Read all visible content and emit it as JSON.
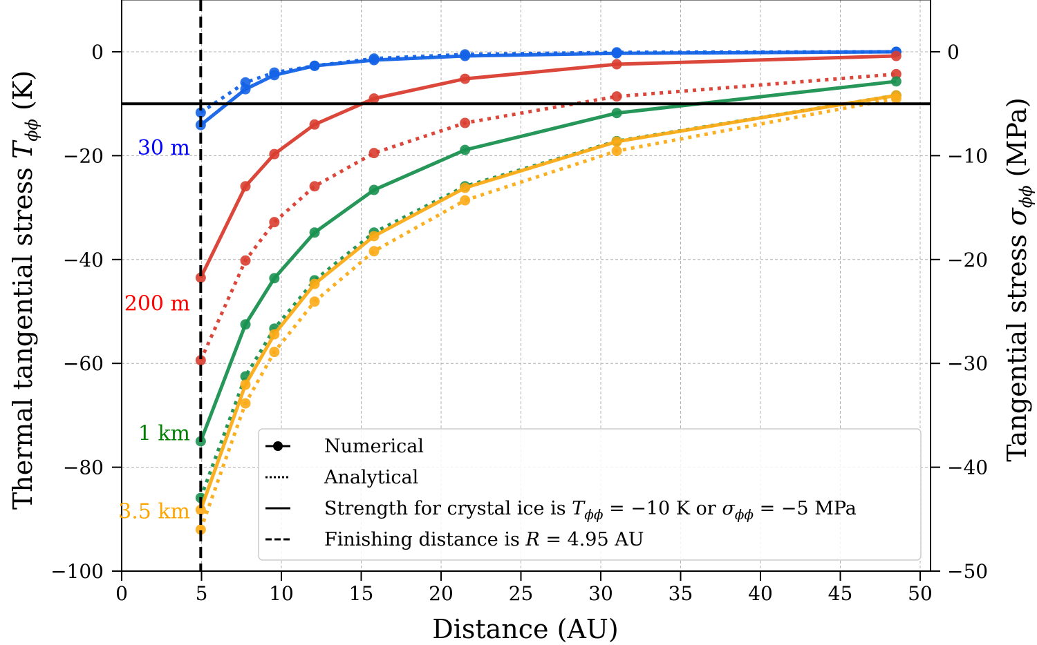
{
  "chart_data": {
    "type": "line",
    "xlabel": "Distance (AU)",
    "ylabel_left": "Thermal tangential stress T_φφ (K)",
    "ylabel_left_plain": "Thermal tangential stress ",
    "ylabel_left_sym": "T",
    "ylabel_left_sub": "ϕϕ",
    "ylabel_left_unit": " (K)",
    "ylabel_right": "Tangential stress σ_φφ (MPa)",
    "ylabel_right_plain": "Tangential stress ",
    "ylabel_right_sym": "σ",
    "ylabel_right_sub": "ϕϕ",
    "ylabel_right_unit": " (MPa)",
    "xlim": [
      0,
      50
    ],
    "ylim_left": [
      -100,
      10
    ],
    "ylim_right": [
      -50,
      5
    ],
    "xticks": [
      0,
      5,
      10,
      15,
      20,
      25,
      30,
      35,
      40,
      45,
      50
    ],
    "yticks_left": [
      0,
      -20,
      -40,
      -60,
      -80,
      -100
    ],
    "yticks_right": [
      0,
      -10,
      -20,
      -30,
      -40,
      -50
    ],
    "grid": true,
    "x": [
      4.95,
      7.75,
      9.56,
      12.08,
      15.8,
      21.5,
      31.0,
      48.5
    ],
    "series": [
      {
        "name": "30 m",
        "color": "#1463e6",
        "label_color": "#0000ff",
        "numerical": [
          -14.1,
          -7.2,
          -4.5,
          -2.7,
          -1.6,
          -0.8,
          -0.3,
          0.0
        ],
        "analytical": [
          -11.7,
          -5.9,
          -4.0,
          -2.7,
          -1.3,
          -0.5,
          -0.1,
          0.0
        ]
      },
      {
        "name": "200 m",
        "color": "#d93d30",
        "label_color": "#ff0000",
        "numerical": [
          -43.5,
          -25.9,
          -19.7,
          -14.0,
          -9.0,
          -5.2,
          -2.4,
          -0.8
        ],
        "analytical": [
          -59.4,
          -40.2,
          -32.8,
          -25.9,
          -19.5,
          -13.7,
          -8.6,
          -4.3
        ]
      },
      {
        "name": "1 km",
        "color": "#1a9150",
        "label_color": "#008000",
        "numerical": [
          -75.0,
          -52.5,
          -43.6,
          -34.8,
          -26.6,
          -18.9,
          -11.8,
          -5.7
        ],
        "analytical": [
          -85.9,
          -62.5,
          -53.3,
          -44.0,
          -34.8,
          -25.9,
          -17.2,
          -8.4
        ]
      },
      {
        "name": "3.5 km",
        "color": "#fbab16",
        "label_color": "#ffa500",
        "numerical": [
          -88.2,
          -64.1,
          -54.4,
          -44.7,
          -35.5,
          -26.2,
          -17.3,
          -8.4
        ],
        "analytical": [
          -92.0,
          -67.7,
          -57.8,
          -48.1,
          -38.4,
          -28.6,
          -19.1,
          -9.0
        ]
      }
    ],
    "series_label_values": [
      -18.5,
      -48.5,
      -73.5,
      -88.5
    ],
    "strength_line": {
      "y": -10
    },
    "finishing_line": {
      "x": 4.95
    },
    "legend": {
      "placement": "lower-right",
      "items": [
        {
          "style": "marker-line",
          "label": "Numerical"
        },
        {
          "style": "dotted",
          "label": "Analytical"
        },
        {
          "style": "solid",
          "label_pre": "Strength for crystal ice is ",
          "sym1": "T",
          "sub1": "ϕϕ",
          "mid": " = −10 K or ",
          "sym2": "σ",
          "sub2": "ϕϕ",
          "post": " = −5 MPa"
        },
        {
          "style": "dashed",
          "label_pre": "Finishing distance is ",
          "sym1": "R",
          "post": " = 4.95 AU"
        }
      ]
    }
  }
}
